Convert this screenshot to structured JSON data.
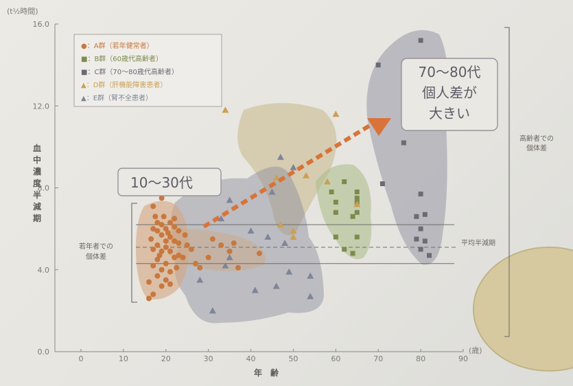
{
  "chart_data": {
    "type": "scatter",
    "title": "",
    "ylabel_unit": "(t½時間)",
    "ylabel": "血中濃度半減期",
    "xlabel": "年　齢",
    "x_unit": "(歳)",
    "xlim": [
      0,
      90
    ],
    "ylim": [
      0,
      16
    ],
    "x_ticks": [
      "0",
      "10",
      "20",
      "30",
      "40",
      "50",
      "60",
      "70",
      "80",
      "90"
    ],
    "y_ticks": [
      "0.0",
      "4.0",
      "8.0",
      "12.0",
      "16.0"
    ],
    "y_tick_values": [
      0,
      4,
      8,
      12,
      16
    ],
    "colors": {
      "A": "#c8783e",
      "B": "#7d8a4b",
      "C": "#6c6a74",
      "D": "#caa055",
      "E": "#7e8597",
      "arrow": "#d9733a",
      "range": "#7c7a78"
    },
    "legend": [
      {
        "key": "A",
        "marker": "circle",
        "label": "●：A群（若年健常者）"
      },
      {
        "key": "B",
        "marker": "square",
        "label": "■：B群（60歳代高齢者）"
      },
      {
        "key": "C",
        "marker": "square",
        "label": "■：C群（70～80歳代高齢者）"
      },
      {
        "key": "D",
        "marker": "triangle",
        "label": "▲：D群（肝機能障害患者）"
      },
      {
        "key": "E",
        "marker": "triangle",
        "label": "▲：E群（腎不全患者）"
      }
    ],
    "series": [
      {
        "key": "A",
        "marker": "circle",
        "points": [
          [
            19,
            7.5
          ],
          [
            17,
            7.1
          ],
          [
            17.5,
            6.6
          ],
          [
            18,
            6.3
          ],
          [
            19,
            6.2
          ],
          [
            20,
            6.0
          ],
          [
            21,
            6.3
          ],
          [
            22,
            6.1
          ],
          [
            17,
            6.0
          ],
          [
            20.5,
            5.8
          ],
          [
            18,
            5.9
          ],
          [
            19,
            5.7
          ],
          [
            21,
            5.6
          ],
          [
            22,
            5.4
          ],
          [
            16.5,
            5.5
          ],
          [
            18,
            5.2
          ],
          [
            20,
            5.1
          ],
          [
            23,
            5.3
          ],
          [
            17,
            5.0
          ],
          [
            19,
            4.9
          ],
          [
            21,
            4.9
          ],
          [
            22,
            4.6
          ],
          [
            18,
            4.5
          ],
          [
            20,
            4.3
          ],
          [
            24,
            4.6
          ],
          [
            17,
            4.2
          ],
          [
            19,
            4.0
          ],
          [
            21,
            3.9
          ],
          [
            18,
            3.7
          ],
          [
            20,
            3.5
          ],
          [
            16,
            3.4
          ],
          [
            21,
            3.3
          ],
          [
            19,
            3.2
          ],
          [
            17,
            2.8
          ],
          [
            16,
            2.6
          ],
          [
            23,
            4.7
          ],
          [
            26,
            5.0
          ],
          [
            27,
            4.3
          ],
          [
            28,
            4.1
          ],
          [
            30,
            4.6
          ],
          [
            31,
            5.5
          ],
          [
            33,
            5.2
          ],
          [
            35,
            4.9
          ],
          [
            36,
            5.3
          ],
          [
            37,
            4.1
          ],
          [
            42,
            4.8
          ],
          [
            24.5,
            5.7
          ],
          [
            25,
            5.2
          ],
          [
            22,
            6.5
          ],
          [
            23,
            5.9
          ],
          [
            20,
            5.4
          ],
          [
            18.5,
            4.7
          ],
          [
            22.5,
            4.1
          ],
          [
            19.5,
            6.6
          ]
        ]
      },
      {
        "key": "B",
        "marker": "square",
        "points": [
          [
            59,
            7.8
          ],
          [
            60,
            7.3
          ],
          [
            60,
            6.8
          ],
          [
            62,
            8.3
          ],
          [
            65,
            7.5
          ],
          [
            65,
            7.8
          ],
          [
            65,
            7.3
          ],
          [
            65,
            6.8
          ],
          [
            60,
            5.6
          ],
          [
            62,
            5.0
          ],
          [
            65,
            5.6
          ],
          [
            64,
            4.8
          ],
          [
            64,
            6.6
          ]
        ]
      },
      {
        "key": "C",
        "marker": "square",
        "points": [
          [
            70,
            14.0
          ],
          [
            80,
            15.2
          ],
          [
            71,
            8.2
          ],
          [
            76,
            10.2
          ],
          [
            79,
            11.3
          ],
          [
            80,
            7.7
          ],
          [
            79,
            6.6
          ],
          [
            81,
            6.7
          ],
          [
            80,
            6.0
          ],
          [
            79,
            5.5
          ],
          [
            80,
            5.0
          ],
          [
            81,
            5.4
          ],
          [
            82,
            4.7
          ]
        ]
      },
      {
        "key": "D",
        "marker": "triangle",
        "points": [
          [
            34,
            11.8
          ],
          [
            46,
            8.5
          ],
          [
            60,
            11.6
          ],
          [
            47,
            6.2
          ],
          [
            50,
            5.9
          ],
          [
            50,
            5.6
          ],
          [
            58,
            8.3
          ],
          [
            65,
            7.2
          ],
          [
            53,
            8.6
          ]
        ]
      },
      {
        "key": "E",
        "marker": "triangle",
        "points": [
          [
            35,
            7.4
          ],
          [
            47,
            9.5
          ],
          [
            50,
            9.0
          ],
          [
            45,
            7.8
          ],
          [
            33,
            6.5
          ],
          [
            40,
            5.9
          ],
          [
            44,
            5.6
          ],
          [
            48,
            5.3
          ],
          [
            35,
            4.6
          ],
          [
            28,
            3.5
          ],
          [
            31,
            2.0
          ],
          [
            41,
            3.0
          ],
          [
            46,
            3.2
          ],
          [
            49,
            3.9
          ],
          [
            54,
            3.7
          ],
          [
            54,
            2.7
          ],
          [
            34,
            4.2
          ]
        ]
      }
    ],
    "reference_lines": {
      "upper": 6.2,
      "average": 5.1,
      "lower": 4.3,
      "average_label": "平均半減期"
    },
    "annotations": {
      "young": {
        "label": "10〜30代",
        "range_label": "若年者での\n個体差"
      },
      "elderly": {
        "label": "70〜80代\n個人差が\n大きい",
        "range_label": "高齢者での\n個体差"
      }
    }
  }
}
